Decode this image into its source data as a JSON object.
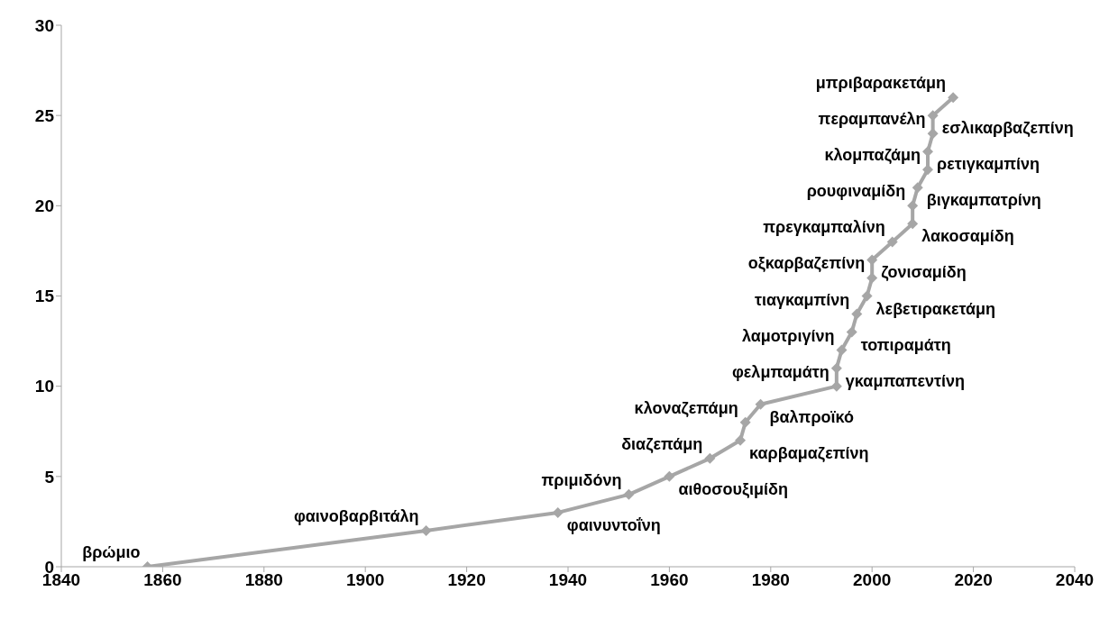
{
  "chart_data": {
    "type": "line",
    "x": [
      1857,
      1912,
      1938,
      1952,
      1960,
      1968,
      1974,
      1975,
      1978,
      1993,
      1993,
      1994,
      1996,
      1997,
      1999,
      2000,
      2000,
      2004,
      2008,
      2008,
      2009,
      2011,
      2011,
      2012,
      2012,
      2016
    ],
    "series": [
      {
        "color": "#a6a6a6",
        "values": [
          0,
          2,
          3,
          4,
          5,
          6,
          7,
          8,
          9,
          10,
          11,
          12,
          13,
          14,
          15,
          16,
          17,
          18,
          19,
          20,
          21,
          22,
          23,
          24,
          25,
          26
        ]
      }
    ],
    "xlim": [
      1840,
      2040
    ],
    "xticks": [
      1840,
      1860,
      1880,
      1900,
      1920,
      1940,
      1960,
      1980,
      2000,
      2020,
      2040
    ],
    "ylim": [
      0,
      30
    ],
    "yticks": [
      0,
      5,
      10,
      15,
      20,
      25,
      30
    ],
    "grid": false,
    "legend": false,
    "marker": "diamond",
    "line_style": "solid",
    "annotations": [
      {
        "text": "βρώμιο",
        "x": 1857,
        "y": 0
      },
      {
        "text": "φαινοβαρβιτάλη",
        "x": 1912,
        "y": 2
      },
      {
        "text": "φαινυντοΐνη",
        "x": 1938,
        "y": 3
      },
      {
        "text": "πριμιδόνη",
        "x": 1952,
        "y": 4
      },
      {
        "text": "αιθοσουξιμίδη",
        "x": 1960,
        "y": 5
      },
      {
        "text": "διαζεπάμη",
        "x": 1968,
        "y": 6
      },
      {
        "text": "καρβαμαζεπίνη",
        "x": 1974,
        "y": 7
      },
      {
        "text": "κλοναζεπάμη",
        "x": 1975,
        "y": 8
      },
      {
        "text": "βαλπροϊκό",
        "x": 1978,
        "y": 9
      },
      {
        "text": "φελμπαμάτη",
        "x": 1993,
        "y": 10
      },
      {
        "text": "γκαμπαπεντίνη",
        "x": 1993,
        "y": 11
      },
      {
        "text": "λαμοτριγίνη",
        "x": 1994,
        "y": 12
      },
      {
        "text": "τοπιραμάτη",
        "x": 1996,
        "y": 13
      },
      {
        "text": "τιαγκαμπίνη",
        "x": 1997,
        "y": 14
      },
      {
        "text": "λεβετιρακετάμη",
        "x": 1999,
        "y": 15
      },
      {
        "text": "οξκαρβαζεπίνη",
        "x": 2000,
        "y": 16
      },
      {
        "text": "ζονισαμίδη",
        "x": 2000,
        "y": 17
      },
      {
        "text": "πρεγκαμπαλίνη",
        "x": 2004,
        "y": 18
      },
      {
        "text": "λακοσαμίδη",
        "x": 2008,
        "y": 19
      },
      {
        "text": "ρουφιναμίδη",
        "x": 2008,
        "y": 20
      },
      {
        "text": "βιγκαμπατρίνη",
        "x": 2009,
        "y": 21
      },
      {
        "text": "κλομπαζάμη",
        "x": 2011,
        "y": 22
      },
      {
        "text": "ρετιγκαμπίνη",
        "x": 2011,
        "y": 23
      },
      {
        "text": "περαμπανέλη",
        "x": 2012,
        "y": 24
      },
      {
        "text": "εσλικαρβαζεπίνη",
        "x": 2012,
        "y": 25
      },
      {
        "text": "μπριβαρακετάμη",
        "x": 2016,
        "y": 26
      }
    ]
  }
}
